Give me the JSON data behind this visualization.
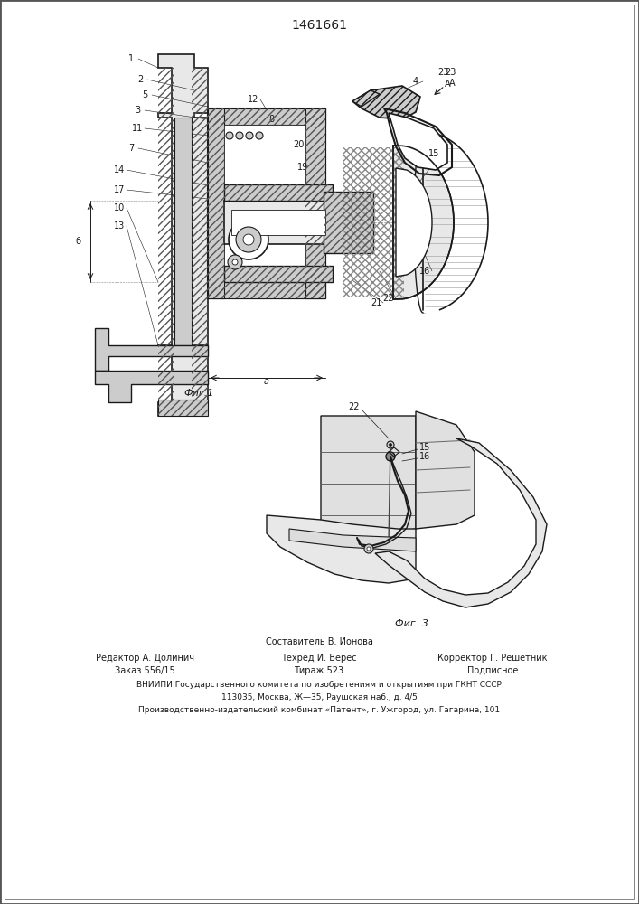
{
  "patent_number": "1461661",
  "fig1_label": "Фиг.1",
  "fig3_label": "Фиг. 3",
  "footer_line1": "Составитель В. Ионова",
  "footer_line2_left": "Редактор А. Долинич",
  "footer_line2_mid": "Техред И. Верес",
  "footer_line2_right": "Корректор Г. Решетник",
  "footer_line3_left": "Заказ 556/15",
  "footer_line3_mid": "Тираж 523",
  "footer_line3_right": "Подписное",
  "footer_line4": "ВНИИПИ Государственного комитета по изобретениям и открытиям при ГКНТ СССР",
  "footer_line5": "113035, Москва, Ж—35, Раушская наб., д. 4/5",
  "footer_line6": "Производственно-издательский комбинат «Патент», г. Ужгород, ул. Гагарина, 101",
  "bg_color": "#ffffff",
  "line_color": "#1a1a1a"
}
